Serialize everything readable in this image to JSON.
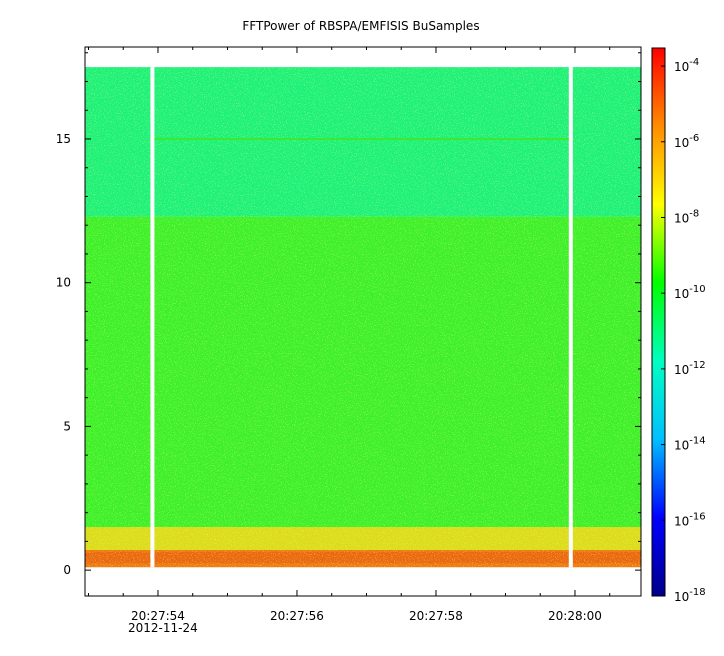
{
  "chart_data": {
    "type": "heatmap",
    "title": "FFTPower of RBSPA/EMFISIS  BuSamples",
    "xlabel": "",
    "ylabel": "",
    "date_label": "2012-11-24",
    "x_ticks": [
      {
        "label": "20:27:54",
        "seconds": 54
      },
      {
        "label": "20:27:56",
        "seconds": 56
      },
      {
        "label": "20:27:58",
        "seconds": 58
      },
      {
        "label": "20:28:00",
        "seconds": 60
      }
    ],
    "x_range_seconds": [
      52.95,
      60.95
    ],
    "y_ticks": [
      0,
      5,
      10,
      15
    ],
    "ylim": [
      -0.9,
      18.2
    ],
    "data_y_range": [
      0.1,
      17.5
    ],
    "colorbar": {
      "scale": "log",
      "range": [
        1e-18,
        0.0003
      ],
      "ticks": [
        {
          "base": "10",
          "exp": "-4",
          "value": 0.0001
        },
        {
          "base": "10",
          "exp": "-6",
          "value": 1e-06
        },
        {
          "base": "10",
          "exp": "-8",
          "value": 1e-08
        },
        {
          "base": "10",
          "exp": "-10",
          "value": 1e-10
        },
        {
          "base": "10",
          "exp": "-12",
          "value": 1e-12
        },
        {
          "base": "10",
          "exp": "-14",
          "value": 1e-14
        },
        {
          "base": "10",
          "exp": "-16",
          "value": 1e-16
        },
        {
          "base": "10",
          "exp": "-18",
          "value": 1e-18
        }
      ],
      "colors": [
        "#00008b",
        "#0000ff",
        "#00bfff",
        "#00ffc0",
        "#00ff00",
        "#ffff00",
        "#ff8c00",
        "#ff0000"
      ]
    },
    "data_gaps_seconds": [
      53.92,
      59.94
    ],
    "bands": [
      {
        "y_from": 0.1,
        "y_to": 0.7,
        "power": 1e-07,
        "color": "#ee7a10"
      },
      {
        "y_from": 0.7,
        "y_to": 1.5,
        "power": 1e-09,
        "color": "#c8e81a"
      },
      {
        "y_from": 1.5,
        "y_to": 12.3,
        "power": 1e-10,
        "color": "#3ef02c"
      },
      {
        "y_from": 12.3,
        "y_to": 17.5,
        "power": 1e-11,
        "color": "#1ef17a"
      }
    ],
    "line_feature": {
      "y": 15.0,
      "color": "#3ce830"
    }
  }
}
